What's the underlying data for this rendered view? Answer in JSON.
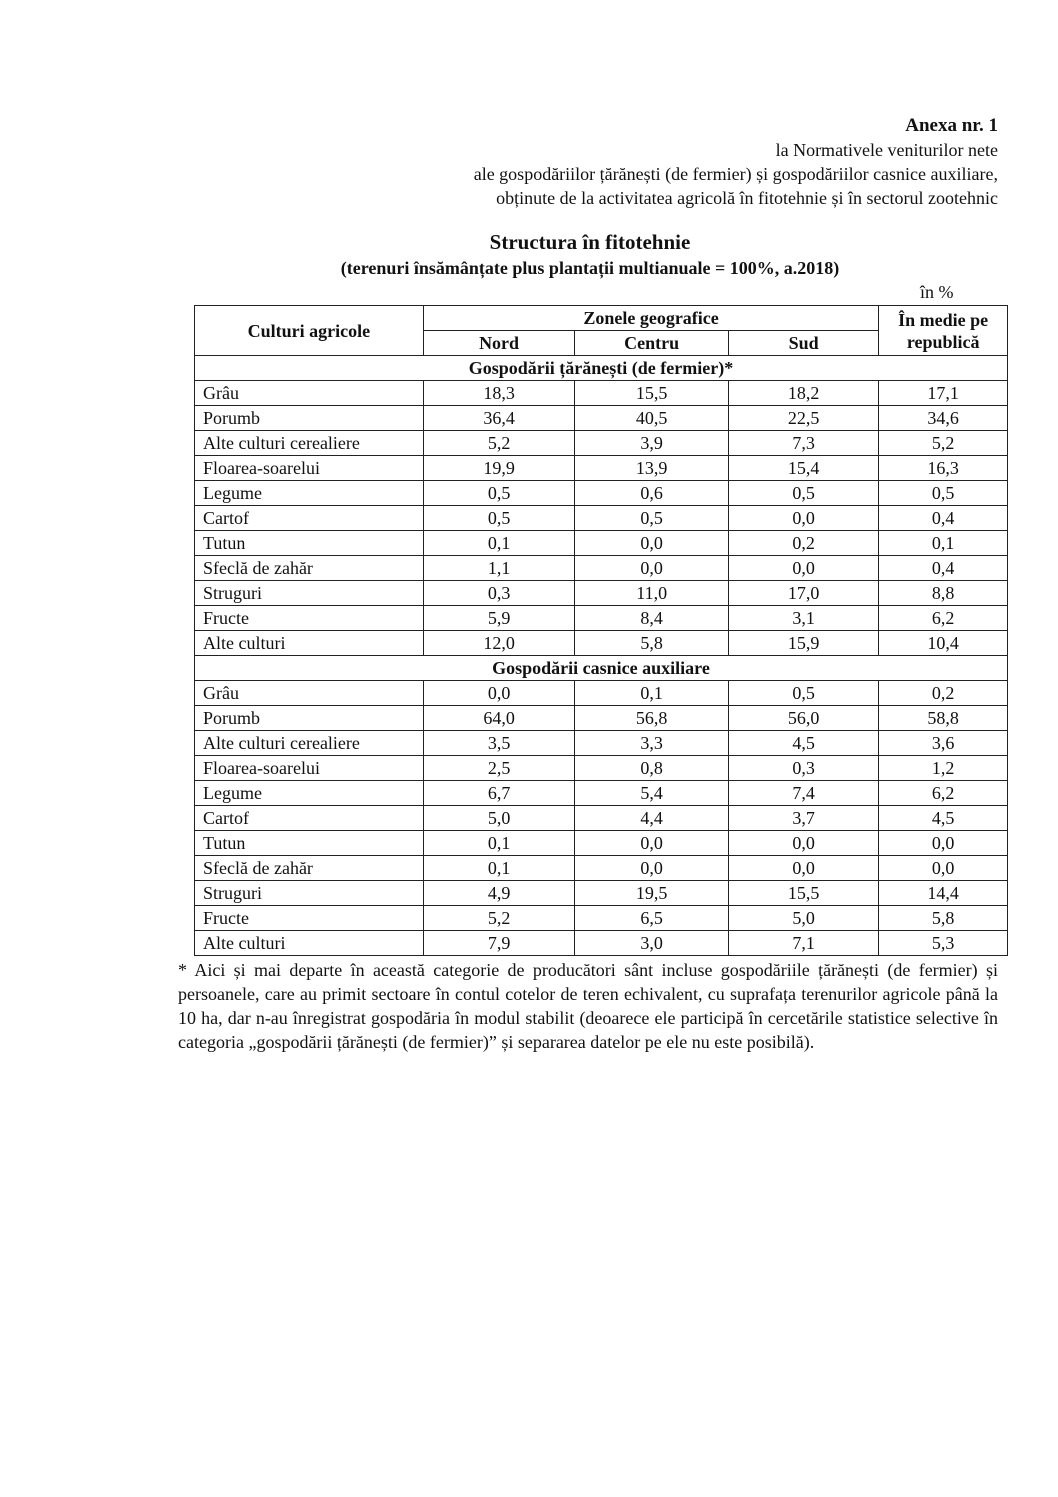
{
  "annex": {
    "title": "Anexa nr. 1",
    "line1": "la Normativele veniturilor nete",
    "line2": "ale gospodăriilor țărănești (de fermier) și gospodăriilor casnice auxiliare,",
    "line3": "obținute de la activitatea agricolă în fitotehnie și în sectorul zootehnic"
  },
  "title": "Structura în fitotehnie",
  "subtitle": "(terenuri însămânțate plus plantații multianuale = 100%, a.2018)",
  "unit": "în %",
  "table": {
    "header": {
      "crops": "Culturi agricole",
      "zones": "Zonele geografice",
      "north": "Nord",
      "center": "Centru",
      "south": "Sud",
      "republic": "În medie pe republică"
    },
    "sections": [
      {
        "title": "Gospodării țărănești (de fermier)*",
        "rows": [
          {
            "crop": "Grâu",
            "nord": "18,3",
            "centru": "15,5",
            "sud": "18,2",
            "medie": "17,1"
          },
          {
            "crop": "Porumb",
            "nord": "36,4",
            "centru": "40,5",
            "sud": "22,5",
            "medie": "34,6"
          },
          {
            "crop": "Alte culturi cerealiere",
            "nord": "5,2",
            "centru": "3,9",
            "sud": "7,3",
            "medie": "5,2"
          },
          {
            "crop": "Floarea-soarelui",
            "nord": "19,9",
            "centru": "13,9",
            "sud": "15,4",
            "medie": "16,3"
          },
          {
            "crop": "Legume",
            "nord": "0,5",
            "centru": "0,6",
            "sud": "0,5",
            "medie": "0,5"
          },
          {
            "crop": "Cartof",
            "nord": "0,5",
            "centru": "0,5",
            "sud": "0,0",
            "medie": "0,4"
          },
          {
            "crop": "Tutun",
            "nord": "0,1",
            "centru": "0,0",
            "sud": "0,2",
            "medie": "0,1"
          },
          {
            "crop": "Sfeclă de zahăr",
            "nord": "1,1",
            "centru": "0,0",
            "sud": "0,0",
            "medie": "0,4"
          },
          {
            "crop": "Struguri",
            "nord": "0,3",
            "centru": "11,0",
            "sud": "17,0",
            "medie": "8,8"
          },
          {
            "crop": "Fructe",
            "nord": "5,9",
            "centru": "8,4",
            "sud": "3,1",
            "medie": "6,2"
          },
          {
            "crop": "Alte culturi",
            "nord": "12,0",
            "centru": "5,8",
            "sud": "15,9",
            "medie": "10,4"
          }
        ]
      },
      {
        "title": "Gospodării casnice auxiliare",
        "rows": [
          {
            "crop": "Grâu",
            "nord": "0,0",
            "centru": "0,1",
            "sud": "0,5",
            "medie": "0,2"
          },
          {
            "crop": "Porumb",
            "nord": "64,0",
            "centru": "56,8",
            "sud": "56,0",
            "medie": "58,8"
          },
          {
            "crop": "Alte culturi cerealiere",
            "nord": "3,5",
            "centru": "3,3",
            "sud": "4,5",
            "medie": "3,6"
          },
          {
            "crop": "Floarea-soarelui",
            "nord": "2,5",
            "centru": "0,8",
            "sud": "0,3",
            "medie": "1,2"
          },
          {
            "crop": "Legume",
            "nord": "6,7",
            "centru": "5,4",
            "sud": "7,4",
            "medie": "6,2"
          },
          {
            "crop": "Cartof",
            "nord": "5,0",
            "centru": "4,4",
            "sud": "3,7",
            "medie": "4,5"
          },
          {
            "crop": "Tutun",
            "nord": "0,1",
            "centru": "0,0",
            "sud": "0,0",
            "medie": "0,0"
          },
          {
            "crop": "Sfeclă de zahăr",
            "nord": "0,1",
            "centru": "0,0",
            "sud": "0,0",
            "medie": "0,0"
          },
          {
            "crop": "Struguri",
            "nord": "4,9",
            "centru": "19,5",
            "sud": "15,5",
            "medie": "14,4"
          },
          {
            "crop": "Fructe",
            "nord": "5,2",
            "centru": "6,5",
            "sud": "5,0",
            "medie": "5,8"
          },
          {
            "crop": "Alte culturi",
            "nord": "7,9",
            "centru": "3,0",
            "sud": "7,1",
            "medie": "5,3"
          }
        ]
      }
    ]
  },
  "footnote": "* Aici și mai departe în această categorie de producători sânt incluse gospodăriile țărănești (de fermier) și persoanele, care au primit sectoare în contul cotelor de teren echivalent, cu suprafața terenurilor agricole până la 10 ha, dar n-au înregistrat gospodăria în modul stabilit (deoarece ele participă în cercetările statistice selective în categoria „gospodării țărănești (de fermier)” și separarea datelor pe ele nu este posibilă)."
}
